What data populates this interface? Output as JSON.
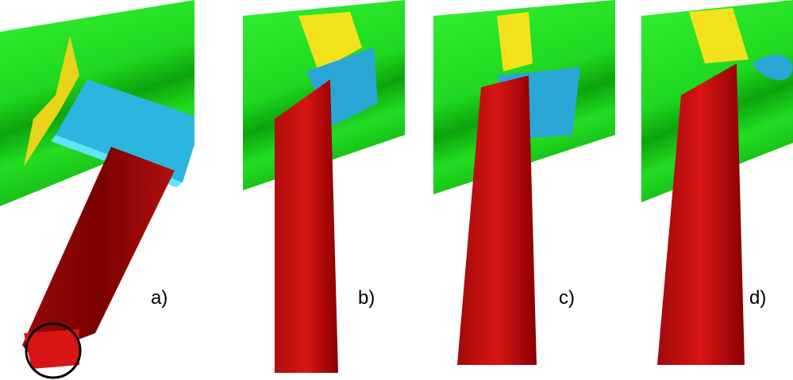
{
  "figure": {
    "panels": [
      {
        "label": "a)"
      },
      {
        "label": "b)"
      },
      {
        "label": "c)"
      },
      {
        "label": "d)"
      }
    ]
  },
  "colors": {
    "cylinder": "#22e022",
    "cylinder_shadow": "#0a9a0a",
    "beam": "#cc1111",
    "beam_dark": "#7a0000",
    "bracket": "#22aadd",
    "bracket_light": "#44ddff",
    "flap": "#f2e21c"
  }
}
